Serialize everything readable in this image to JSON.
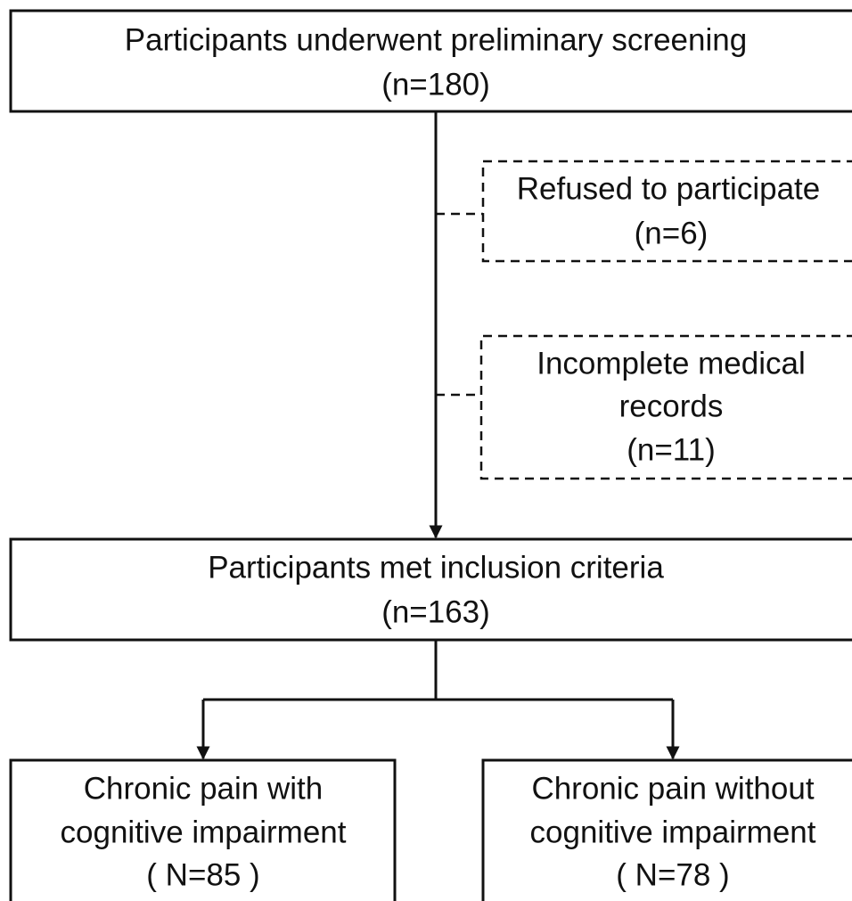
{
  "nodes": [
    {
      "lines": [
        "Participants underwent preliminary screening",
        "(n=180)"
      ]
    },
    {
      "lines": [
        "Refused to participate",
        "(n=6)"
      ]
    },
    {
      "lines": [
        "Incomplete medical",
        "records",
        "(n=11)"
      ]
    },
    {
      "lines": [
        "Participants met inclusion criteria",
        "(n=163)"
      ]
    },
    {
      "lines": [
        "Chronic pain with",
        "cognitive impairment",
        "( N=85 )"
      ]
    },
    {
      "lines": [
        "Chronic pain without",
        "cognitive impairment",
        "( N=78 )"
      ]
    }
  ]
}
